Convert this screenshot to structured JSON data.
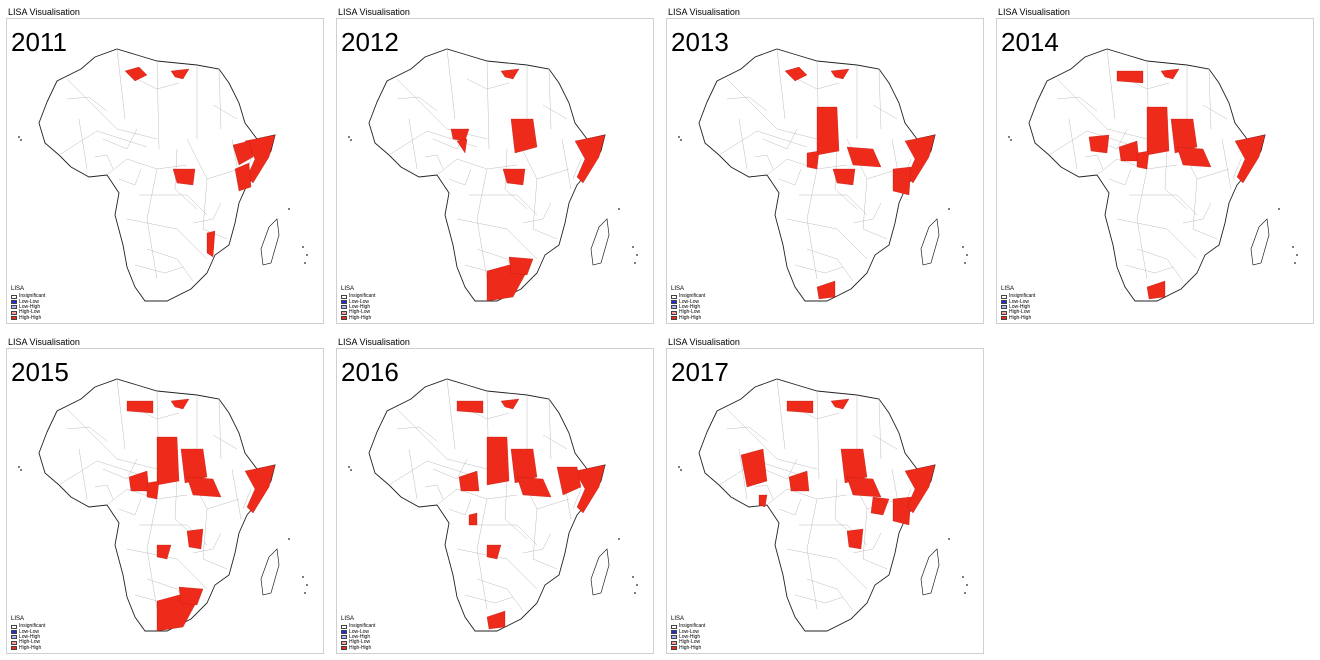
{
  "figure": {
    "panel_title": "LISA Visualisation",
    "legend": {
      "title": "LISA",
      "items": [
        {
          "label": "Insignificant",
          "color": "#ffffff"
        },
        {
          "label": "Low-Low",
          "color": "#1f2fd6"
        },
        {
          "label": "Low-High",
          "color": "#a6b4f0"
        },
        {
          "label": "High-Low",
          "color": "#f4a3a3"
        },
        {
          "label": "High-High",
          "color": "#ee2a1b"
        }
      ]
    },
    "colors": {
      "outline": "#222222",
      "internal_border": "#bdbdbd",
      "high_high": "#ee2a1b"
    },
    "panels": [
      {
        "year": "2011",
        "high_high_regions": [
          "Libya coast",
          "Egypt north",
          "Somalia",
          "Ethiopia east",
          "Kenya northeast",
          "Central African Republic",
          "Mozambique"
        ]
      },
      {
        "year": "2012",
        "high_high_regions": [
          "Egypt north",
          "Niger southeast",
          "Nigeria northeast",
          "Sudan",
          "Somalia",
          "Central African Republic",
          "South Africa",
          "Botswana"
        ]
      },
      {
        "year": "2013",
        "high_high_regions": [
          "Egypt north",
          "Libya coast",
          "Chad",
          "Central African Republic",
          "Cameroon",
          "South Sudan",
          "Somalia",
          "Kenya",
          "South Africa southwest"
        ]
      },
      {
        "year": "2014",
        "high_high_regions": [
          "Libya",
          "Egypt north",
          "Chad",
          "Sudan",
          "South Sudan",
          "Nigeria",
          "Mali",
          "Cameroon",
          "Somalia",
          "South Africa southwest"
        ]
      },
      {
        "year": "2015",
        "high_high_regions": [
          "Libya",
          "Egypt north",
          "Chad",
          "Sudan",
          "South Sudan",
          "Nigeria",
          "Cameroon",
          "Somalia",
          "Democratic Republic of the Congo",
          "Angola",
          "South Africa",
          "Botswana"
        ]
      },
      {
        "year": "2016",
        "high_high_regions": [
          "Libya",
          "Egypt north",
          "Chad",
          "Sudan",
          "South Sudan",
          "Nigeria",
          "Somalia",
          "Ethiopia",
          "Gabon",
          "Angola",
          "South Africa southwest"
        ]
      },
      {
        "year": "2017",
        "high_high_regions": [
          "Algeria south",
          "Libya",
          "Egypt north",
          "Nigeria",
          "Sudan",
          "South Sudan",
          "Uganda",
          "Kenya",
          "Somalia",
          "Ghana",
          "Democratic Republic of the Congo"
        ]
      }
    ]
  }
}
